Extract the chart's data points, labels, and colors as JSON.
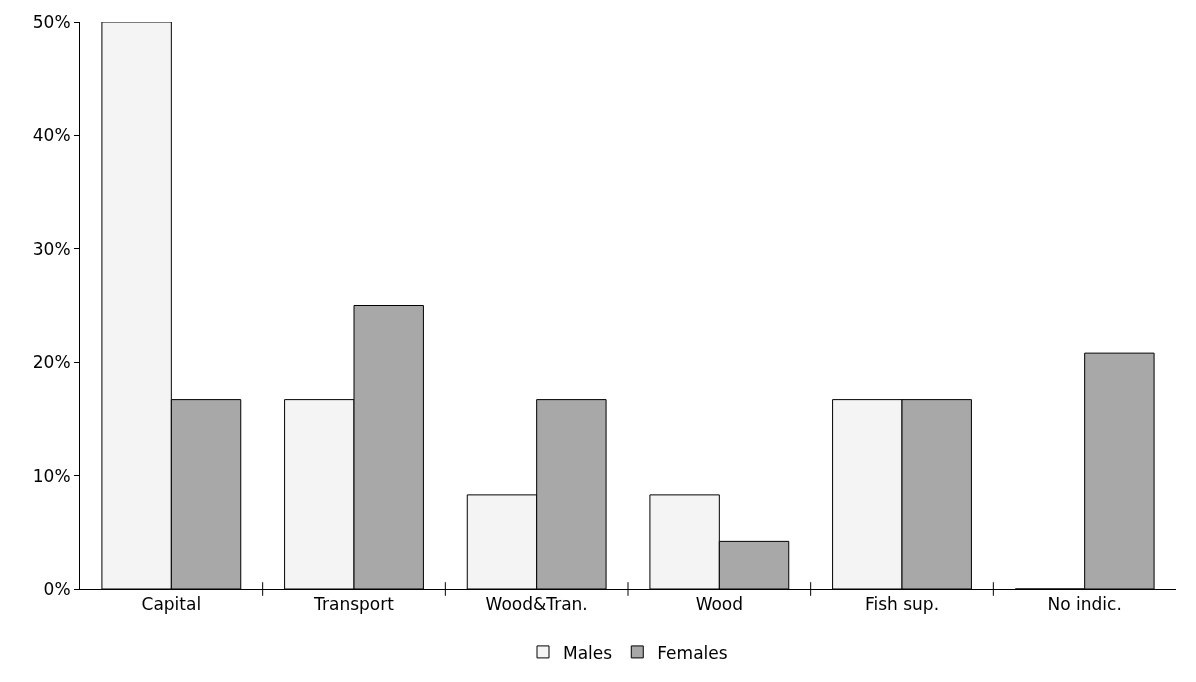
{
  "chart_data": {
    "type": "bar",
    "categories": [
      "Capital",
      "Transport",
      "Wood&Tran.",
      "Wood",
      "Fish sup.",
      "No indic."
    ],
    "series": [
      {
        "name": "Males",
        "color": "#f4f4f4",
        "values": [
          50,
          16.7,
          8.3,
          8.3,
          16.7,
          0
        ]
      },
      {
        "name": "Females",
        "color": "#a8a8a8",
        "values": [
          16.7,
          25,
          16.7,
          4.2,
          16.7,
          20.8
        ]
      }
    ],
    "ylim": [
      0,
      50
    ],
    "yticks": [
      {
        "value": 0,
        "label": "0%"
      },
      {
        "value": 10,
        "label": "10%"
      },
      {
        "value": 20,
        "label": "20%"
      },
      {
        "value": 30,
        "label": "30%"
      },
      {
        "value": 40,
        "label": "40%"
      },
      {
        "value": 50,
        "label": "50%"
      }
    ],
    "legend": "bottom"
  }
}
